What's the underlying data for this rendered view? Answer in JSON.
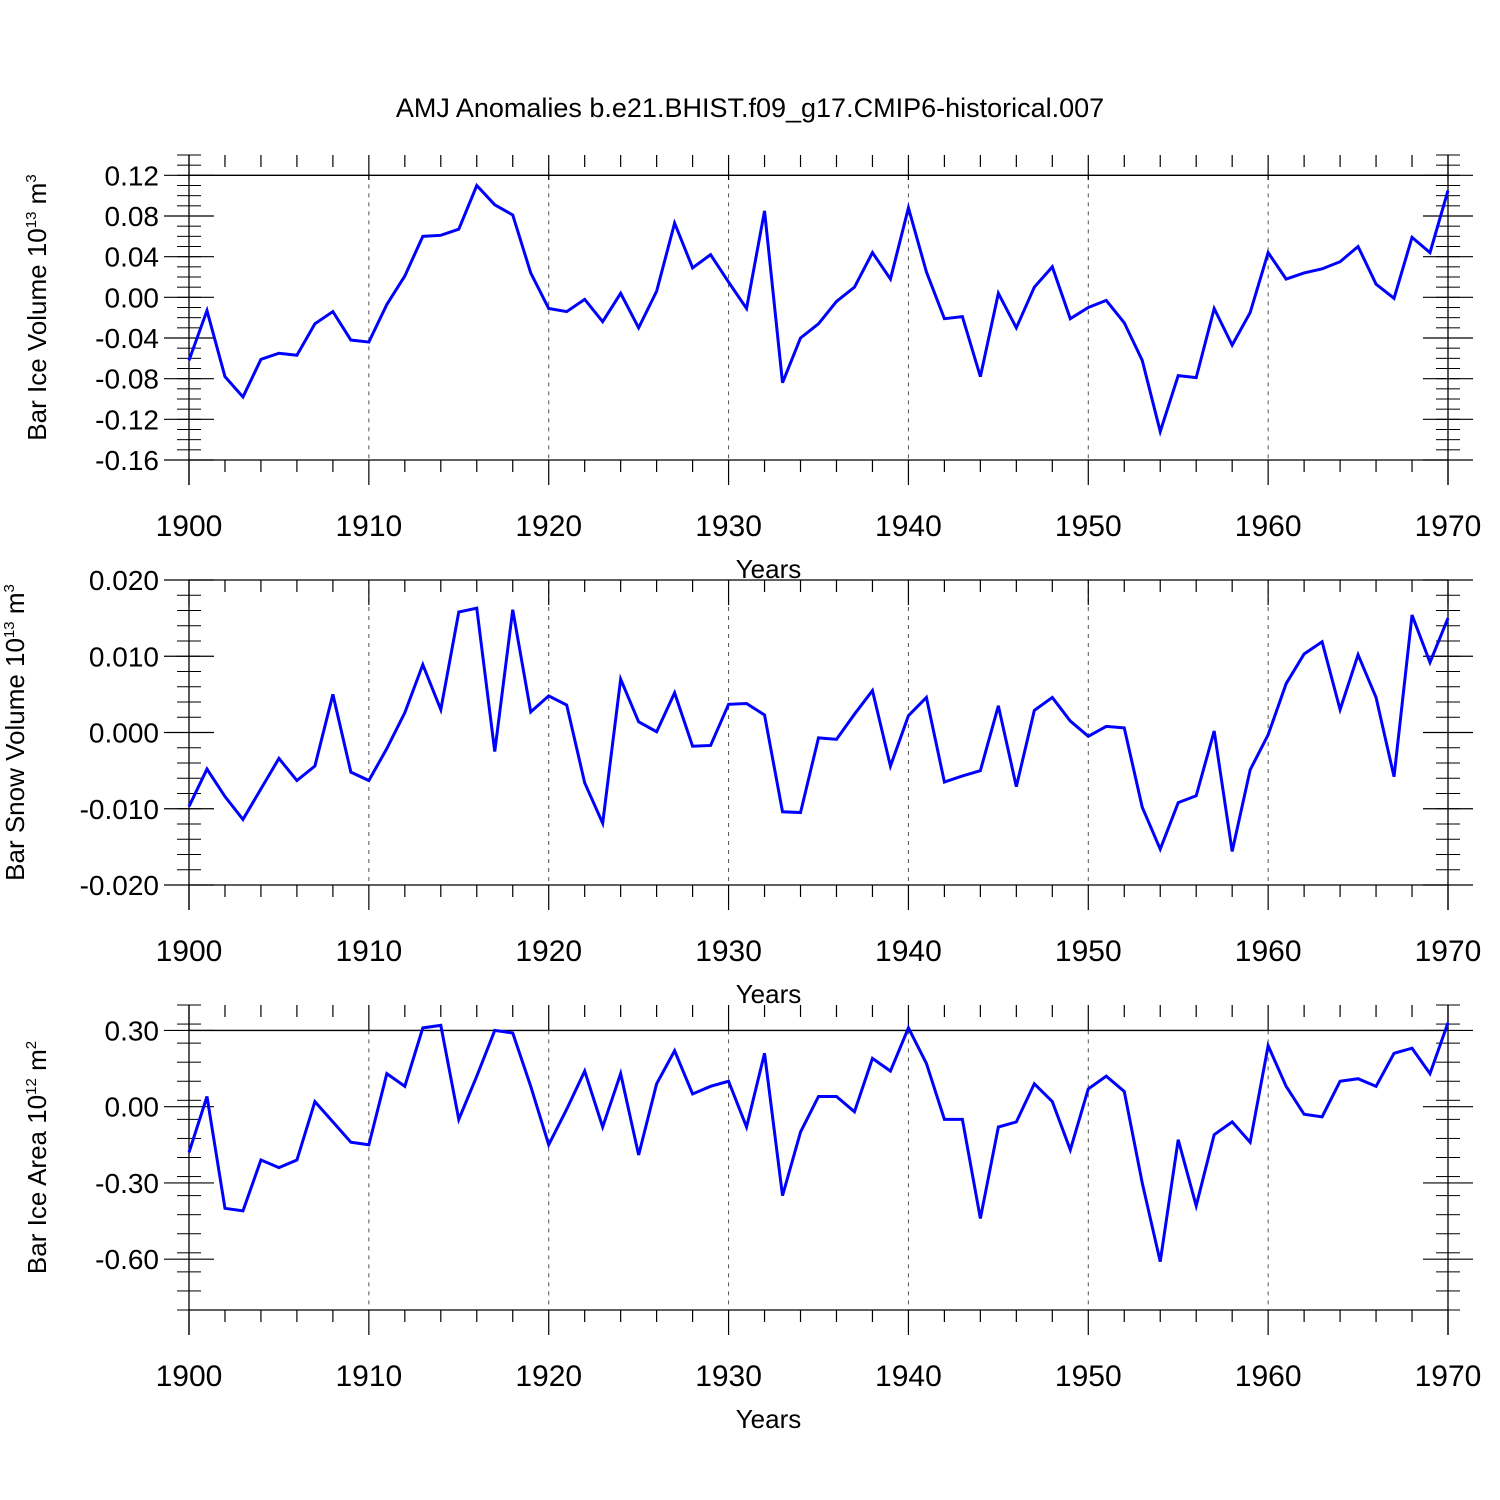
{
  "chart_data": [
    {
      "type": "line",
      "title": "AMJ Anomalies b.e21.BHIST.f09_g17.CMIP6-historical.007",
      "xlabel": "Years",
      "ylabel": "Bar Ice Volume 10",
      "ylabel_exp": "13",
      "ylabel_unit": " m",
      "ylabel_unit_exp": "3",
      "xlim": [
        1900,
        1970
      ],
      "ylim": [
        -0.16,
        0.14
      ],
      "xticks": [
        1900,
        1910,
        1920,
        1930,
        1940,
        1950,
        1960,
        1970
      ],
      "xtick_labels": [
        "1900",
        "1910",
        "1920",
        "1930",
        "1940",
        "1950",
        "1960",
        "1970"
      ],
      "yticks": [
        0.12,
        0.08,
        0.04,
        0.0,
        -0.04,
        -0.08,
        -0.12,
        -0.16
      ],
      "ytick_labels": [
        "0.12",
        "0.08",
        "0.04",
        "0.00",
        "-0.04",
        "-0.08",
        "-0.12",
        "-0.16"
      ],
      "line_color": "#0000ff",
      "x_start": 1900,
      "values": [
        -0.062,
        -0.013,
        -0.078,
        -0.098,
        -0.061,
        -0.055,
        -0.057,
        -0.026,
        -0.014,
        -0.042,
        -0.044,
        -0.007,
        0.021,
        0.06,
        0.061,
        0.067,
        0.11,
        0.091,
        0.081,
        0.024,
        -0.011,
        -0.014,
        -0.002,
        -0.024,
        0.004,
        -0.03,
        0.006,
        0.073,
        0.029,
        0.042,
        0.015,
        -0.011,
        0.085,
        -0.084,
        -0.04,
        -0.026,
        -0.004,
        0.01,
        0.044,
        0.018,
        0.088,
        0.025,
        -0.021,
        -0.019,
        -0.078,
        0.004,
        -0.03,
        0.01,
        0.03,
        -0.021,
        -0.01,
        -0.003,
        -0.025,
        -0.062,
        -0.132,
        -0.077,
        -0.079,
        -0.011,
        -0.047,
        -0.015,
        0.044,
        0.018,
        0.024,
        0.028,
        0.035,
        0.05,
        0.013,
        -0.001,
        0.059,
        0.044,
        0.105
      ]
    },
    {
      "type": "line",
      "xlabel": "Years",
      "ylabel": "Bar Snow Volume 10",
      "ylabel_exp": "13",
      "ylabel_unit": " m",
      "ylabel_unit_exp": "3",
      "xlim": [
        1900,
        1970
      ],
      "ylim": [
        -0.02,
        0.02
      ],
      "xticks": [
        1900,
        1910,
        1920,
        1930,
        1940,
        1950,
        1960,
        1970
      ],
      "xtick_labels": [
        "1900",
        "1910",
        "1920",
        "1930",
        "1940",
        "1950",
        "1960",
        "1970"
      ],
      "yticks": [
        0.02,
        0.01,
        0.0,
        -0.01,
        -0.02
      ],
      "ytick_labels": [
        "0.020",
        "0.010",
        "0.000",
        "-0.010",
        "-0.020"
      ],
      "line_color": "#0000ff",
      "x_start": 1900,
      "values": [
        -0.0097,
        -0.0048,
        -0.0084,
        -0.0114,
        -0.0074,
        -0.0034,
        -0.0063,
        -0.0044,
        0.005,
        -0.0052,
        -0.0063,
        -0.0021,
        0.0026,
        0.0089,
        0.003,
        0.0158,
        0.0163,
        -0.0025,
        0.0161,
        0.0027,
        0.0048,
        0.0036,
        -0.0066,
        -0.0119,
        0.007,
        0.0014,
        0.0001,
        0.0052,
        -0.0018,
        -0.0017,
        0.0037,
        0.0038,
        0.0023,
        -0.0104,
        -0.0105,
        -0.0007,
        -0.0009,
        0.0024,
        0.0055,
        -0.0044,
        0.0022,
        0.0046,
        -0.0065,
        -0.0057,
        -0.005,
        0.0035,
        -0.0071,
        0.0029,
        0.0046,
        0.0015,
        -0.0005,
        0.0008,
        0.0006,
        -0.0098,
        -0.0153,
        -0.0092,
        -0.0083,
        0.0002,
        -0.0156,
        -0.0049,
        -0.0003,
        0.0064,
        0.0103,
        0.0119,
        0.003,
        0.0102,
        0.0046,
        -0.0058,
        0.0154,
        0.0092,
        0.015
      ]
    },
    {
      "type": "line",
      "xlabel": "Years",
      "ylabel": "Bar Ice Area 10",
      "ylabel_exp": "12",
      "ylabel_unit": " m",
      "ylabel_unit_exp": "2",
      "xlim": [
        1900,
        1970
      ],
      "ylim": [
        -0.8,
        0.4
      ],
      "xticks": [
        1900,
        1910,
        1920,
        1930,
        1940,
        1950,
        1960,
        1970
      ],
      "xtick_labels": [
        "1900",
        "1910",
        "1920",
        "1930",
        "1940",
        "1950",
        "1960",
        "1970"
      ],
      "yticks": [
        0.3,
        0.0,
        -0.3,
        -0.6
      ],
      "ytick_labels": [
        "0.30",
        "0.00",
        "-0.30",
        "-0.60"
      ],
      "line_color": "#0000ff",
      "x_start": 1900,
      "values": [
        -0.18,
        0.04,
        -0.4,
        -0.41,
        -0.21,
        -0.24,
        -0.21,
        0.02,
        -0.06,
        -0.14,
        -0.15,
        0.13,
        0.08,
        0.31,
        0.32,
        -0.05,
        0.12,
        0.3,
        0.29,
        0.08,
        -0.15,
        -0.01,
        0.14,
        -0.08,
        0.13,
        -0.19,
        0.09,
        0.22,
        0.05,
        0.08,
        0.1,
        -0.08,
        0.21,
        -0.35,
        -0.1,
        0.04,
        0.04,
        -0.02,
        0.19,
        0.14,
        0.31,
        0.17,
        -0.05,
        -0.05,
        -0.44,
        -0.08,
        -0.06,
        0.09,
        0.02,
        -0.17,
        0.07,
        0.12,
        0.06,
        -0.3,
        -0.61,
        -0.13,
        -0.39,
        -0.11,
        -0.06,
        -0.14,
        0.24,
        0.08,
        -0.03,
        -0.04,
        0.1,
        0.11,
        0.08,
        0.21,
        0.23,
        0.13,
        0.33
      ]
    }
  ]
}
